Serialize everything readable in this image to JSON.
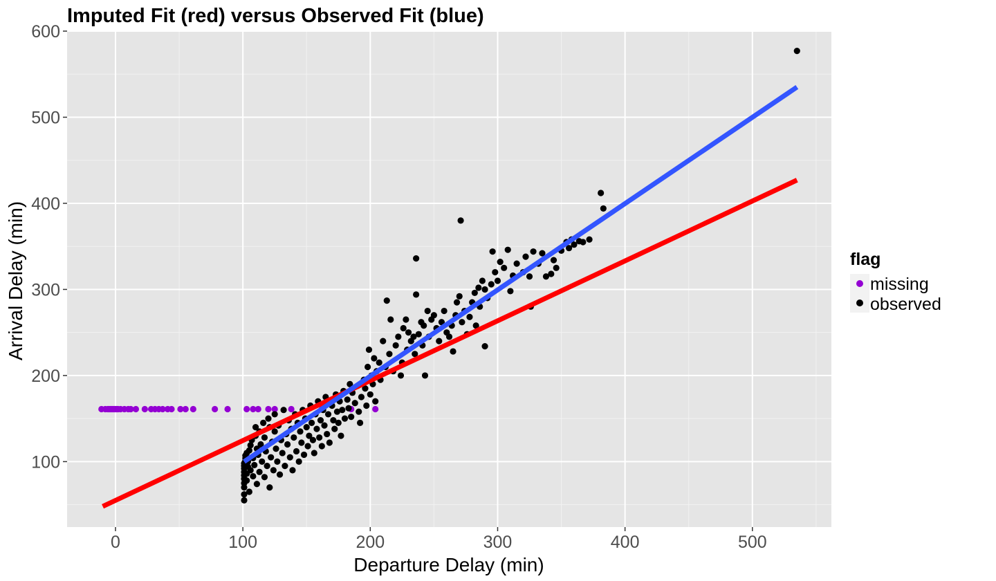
{
  "chart_data": {
    "type": "scatter",
    "title": "Imputed Fit (red) versus Observed Fit (blue)",
    "xlabel": "Departure Delay (min)",
    "ylabel": "Arrival Delay (min)",
    "xlim": [
      -38,
      562
    ],
    "ylim": [
      24,
      600
    ],
    "x_ticks": [
      0,
      100,
      200,
      300,
      400,
      500
    ],
    "y_ticks": [
      100,
      200,
      300,
      400,
      500,
      600
    ],
    "grid": true,
    "legend": {
      "title": "flag",
      "placement": "right",
      "entries": [
        {
          "label": "missing",
          "color": "#9400d3"
        },
        {
          "label": "observed",
          "color": "#000000"
        }
      ]
    },
    "series": [
      {
        "name": "missing",
        "color": "#9400d3",
        "points": [
          [
            -11,
            161
          ],
          [
            -8,
            161
          ],
          [
            -6,
            161
          ],
          [
            -5,
            161
          ],
          [
            -4,
            161
          ],
          [
            -3,
            161
          ],
          [
            -2,
            161
          ],
          [
            -1,
            161
          ],
          [
            0,
            161
          ],
          [
            1,
            161
          ],
          [
            2,
            161
          ],
          [
            4,
            161
          ],
          [
            7,
            161
          ],
          [
            10,
            161
          ],
          [
            12,
            161
          ],
          [
            16,
            161
          ],
          [
            23,
            161
          ],
          [
            28,
            161
          ],
          [
            31,
            161
          ],
          [
            34,
            161
          ],
          [
            37,
            161
          ],
          [
            41,
            161
          ],
          [
            44,
            161
          ],
          [
            51,
            161
          ],
          [
            55,
            161
          ],
          [
            61,
            161
          ],
          [
            78,
            161
          ],
          [
            88,
            161
          ],
          [
            103,
            161
          ],
          [
            108,
            161
          ],
          [
            112,
            161
          ],
          [
            120,
            161
          ],
          [
            125,
            161
          ],
          [
            138,
            161
          ],
          [
            162,
            161
          ],
          [
            185,
            161
          ],
          [
            204,
            161
          ]
        ]
      },
      {
        "name": "observed",
        "color": "#000000",
        "points": [
          [
            101,
            55
          ],
          [
            101,
            62
          ],
          [
            101,
            70
          ],
          [
            101,
            75
          ],
          [
            101,
            80
          ],
          [
            101,
            84
          ],
          [
            101,
            88
          ],
          [
            101,
            92
          ],
          [
            101,
            95
          ],
          [
            101,
            98
          ],
          [
            102,
            101
          ],
          [
            102,
            104
          ],
          [
            102,
            107
          ],
          [
            103,
            110
          ],
          [
            103,
            78
          ],
          [
            103,
            86
          ],
          [
            104,
            94
          ],
          [
            104,
            100
          ],
          [
            105,
            113
          ],
          [
            105,
            65
          ],
          [
            106,
            119
          ],
          [
            106,
            90
          ],
          [
            107,
            125
          ],
          [
            108,
            83
          ],
          [
            108,
            104
          ],
          [
            109,
            96
          ],
          [
            110,
            130
          ],
          [
            110,
            140
          ],
          [
            111,
            74
          ],
          [
            111,
            115
          ],
          [
            112,
            108
          ],
          [
            113,
            88
          ],
          [
            113,
            135
          ],
          [
            114,
            120
          ],
          [
            115,
            100
          ],
          [
            116,
            145
          ],
          [
            117,
            82
          ],
          [
            117,
            128
          ],
          [
            118,
            112
          ],
          [
            119,
            95
          ],
          [
            120,
            150
          ],
          [
            121,
            70
          ],
          [
            121,
            140
          ],
          [
            122,
            105
          ],
          [
            123,
            123
          ],
          [
            124,
            90
          ],
          [
            125,
            155
          ],
          [
            125,
            135
          ],
          [
            126,
            115
          ],
          [
            127,
            100
          ],
          [
            128,
            142
          ],
          [
            129,
            85
          ],
          [
            130,
            125
          ],
          [
            131,
            110
          ],
          [
            132,
            160
          ],
          [
            133,
            95
          ],
          [
            134,
            132
          ],
          [
            135,
            120
          ],
          [
            136,
            148
          ],
          [
            137,
            105
          ],
          [
            138,
            138
          ],
          [
            139,
            90
          ],
          [
            140,
            128
          ],
          [
            141,
            155
          ],
          [
            142,
            112
          ],
          [
            143,
            145
          ],
          [
            144,
            100
          ],
          [
            145,
            135
          ],
          [
            146,
            122
          ],
          [
            147,
            160
          ],
          [
            148,
            108
          ],
          [
            149,
            150
          ],
          [
            150,
            140
          ],
          [
            151,
            118
          ],
          [
            152,
            130
          ],
          [
            153,
            165
          ],
          [
            154,
            145
          ],
          [
            155,
            125
          ],
          [
            156,
            110
          ],
          [
            157,
            155
          ],
          [
            158,
            138
          ],
          [
            159,
            170
          ],
          [
            160,
            128
          ],
          [
            161,
            148
          ],
          [
            162,
            118
          ],
          [
            163,
            160
          ],
          [
            164,
            142
          ],
          [
            165,
            175
          ],
          [
            166,
            132
          ],
          [
            167,
            155
          ],
          [
            168,
            122
          ],
          [
            170,
            165
          ],
          [
            171,
            148
          ],
          [
            172,
            138
          ],
          [
            173,
            178
          ],
          [
            174,
            158
          ],
          [
            175,
            145
          ],
          [
            176,
            170
          ],
          [
            177,
            130
          ],
          [
            178,
            160
          ],
          [
            179,
            182
          ],
          [
            180,
            150
          ],
          [
            182,
            172
          ],
          [
            183,
            162
          ],
          [
            184,
            190
          ],
          [
            185,
            152
          ],
          [
            186,
            180
          ],
          [
            188,
            168
          ],
          [
            190,
            188
          ],
          [
            191,
            158
          ],
          [
            192,
            145
          ],
          [
            193,
            175
          ],
          [
            195,
            195
          ],
          [
            196,
            185
          ],
          [
            197,
            165
          ],
          [
            198,
            210
          ],
          [
            199,
            230
          ],
          [
            200,
            178
          ],
          [
            201,
            200
          ],
          [
            202,
            190
          ],
          [
            203,
            220
          ],
          [
            204,
            170
          ],
          [
            205,
            205
          ],
          [
            207,
            215
          ],
          [
            208,
            195
          ],
          [
            210,
            240
          ],
          [
            212,
            210
          ],
          [
            213,
            287
          ],
          [
            215,
            225
          ],
          [
            216,
            265
          ],
          [
            218,
            205
          ],
          [
            220,
            235
          ],
          [
            222,
            245
          ],
          [
            224,
            200
          ],
          [
            225,
            215
          ],
          [
            226,
            255
          ],
          [
            228,
            265
          ],
          [
            229,
            230
          ],
          [
            230,
            250
          ],
          [
            232,
            240
          ],
          [
            234,
            245
          ],
          [
            235,
            225
          ],
          [
            236,
            336
          ],
          [
            236,
            294
          ],
          [
            238,
            248
          ],
          [
            240,
            262
          ],
          [
            241,
            235
          ],
          [
            242,
            258
          ],
          [
            243,
            200
          ],
          [
            245,
            275
          ],
          [
            246,
            245
          ],
          [
            248,
            265
          ],
          [
            250,
            270
          ],
          [
            252,
            255
          ],
          [
            254,
            240
          ],
          [
            256,
            262
          ],
          [
            258,
            275
          ],
          [
            260,
            250
          ],
          [
            262,
            245
          ],
          [
            264,
            258
          ],
          [
            265,
            228
          ],
          [
            267,
            270
          ],
          [
            268,
            285
          ],
          [
            270,
            292
          ],
          [
            271,
            380
          ],
          [
            272,
            262
          ],
          [
            274,
            275
          ],
          [
            276,
            248
          ],
          [
            278,
            268
          ],
          [
            280,
            285
          ],
          [
            282,
            296
          ],
          [
            283,
            258
          ],
          [
            285,
            302
          ],
          [
            286,
            280
          ],
          [
            288,
            310
          ],
          [
            290,
            300
          ],
          [
            290,
            234
          ],
          [
            292,
            290
          ],
          [
            295,
            306
          ],
          [
            296,
            344
          ],
          [
            298,
            320
          ],
          [
            300,
            310
          ],
          [
            302,
            332
          ],
          [
            305,
            325
          ],
          [
            308,
            346
          ],
          [
            310,
            298
          ],
          [
            312,
            316
          ],
          [
            315,
            330
          ],
          [
            320,
            320
          ],
          [
            322,
            338
          ],
          [
            325,
            315
          ],
          [
            326,
            280
          ],
          [
            328,
            344
          ],
          [
            332,
            330
          ],
          [
            335,
            342
          ],
          [
            338,
            315
          ],
          [
            342,
            318
          ],
          [
            344,
            334
          ],
          [
            346,
            325
          ],
          [
            350,
            345
          ],
          [
            354,
            355
          ],
          [
            356,
            348
          ],
          [
            358,
            358
          ],
          [
            360,
            352
          ],
          [
            364,
            356
          ],
          [
            367,
            355
          ],
          [
            372,
            358
          ],
          [
            381,
            412
          ],
          [
            383,
            394
          ],
          [
            535,
            577
          ]
        ]
      }
    ],
    "fits": [
      {
        "name": "imputed fit",
        "color": "#ff0000",
        "x": [
          -10,
          535
        ],
        "y": [
          48,
          427
        ]
      },
      {
        "name": "observed fit",
        "color": "#3355ff",
        "x": [
          101,
          535
        ],
        "y": [
          100,
          535
        ]
      }
    ]
  }
}
